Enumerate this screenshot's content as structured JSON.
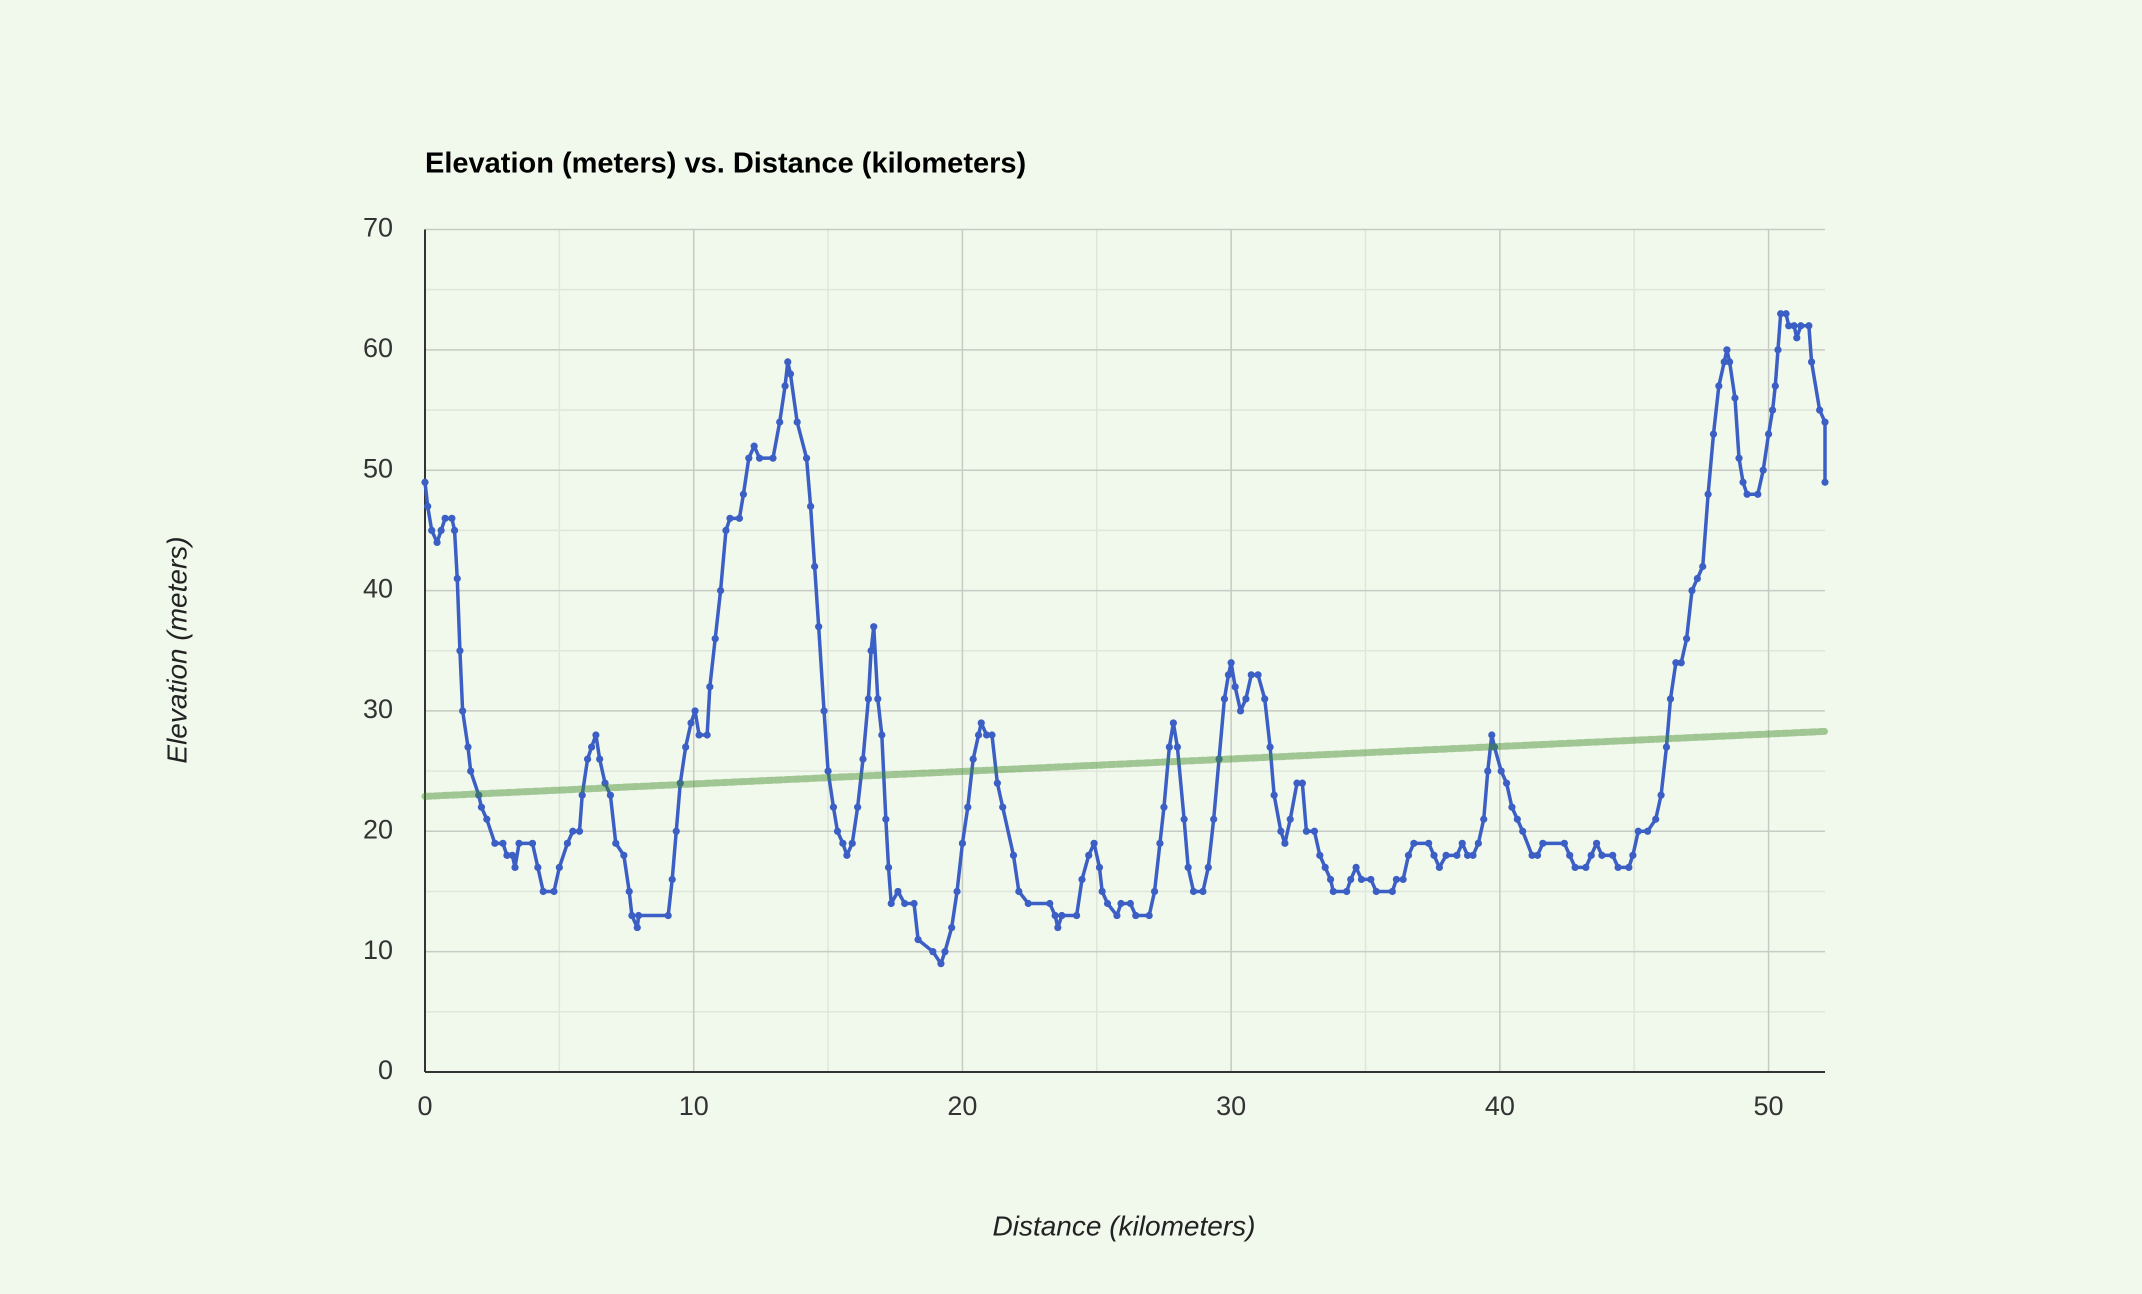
{
  "chart_data": {
    "type": "line",
    "title": "Elevation (meters) vs. Distance (kilometers)",
    "x_label": "Distance (kilometers)",
    "y_label": "Elevation (meters)",
    "xlim": [
      0,
      52.1
    ],
    "xticks": [
      0,
      10,
      20,
      30,
      40,
      50
    ],
    "ylim": [
      0,
      70
    ],
    "yticks": [
      0,
      10,
      20,
      30,
      40,
      50,
      60,
      70
    ],
    "grid": true,
    "series": [
      {
        "color": "#3b5fc4",
        "markers": true,
        "x": [
          0,
          0.1,
          0.25,
          0.45,
          0.6,
          0.75,
          1.0,
          1.1,
          1.2,
          1.3,
          1.4,
          1.6,
          1.7,
          2.0,
          2.1,
          2.3,
          2.6,
          2.9,
          3.05,
          3.25,
          3.35,
          3.5,
          4.0,
          4.2,
          4.4,
          4.8,
          5.0,
          5.3,
          5.5,
          5.75,
          5.85,
          6.05,
          6.2,
          6.36,
          6.5,
          6.7,
          6.9,
          7.1,
          7.4,
          7.6,
          7.7,
          7.9,
          7.95,
          9.05,
          9.2,
          9.35,
          9.5,
          9.7,
          9.9,
          10.05,
          10.2,
          10.5,
          10.6,
          10.8,
          11.0,
          11.2,
          11.35,
          11.7,
          11.85,
          12.05,
          12.25,
          12.45,
          12.95,
          13.2,
          13.4,
          13.5,
          13.6,
          13.85,
          14.2,
          14.35,
          14.5,
          14.65,
          14.85,
          15.0,
          15.2,
          15.35,
          15.55,
          15.7,
          15.9,
          16.1,
          16.3,
          16.5,
          16.6,
          16.7,
          16.85,
          17.0,
          17.15,
          17.25,
          17.35,
          17.6,
          17.85,
          18.2,
          18.35,
          18.9,
          19.2,
          19.35,
          19.6,
          19.8,
          20.0,
          20.2,
          20.4,
          20.6,
          20.7,
          20.9,
          21.1,
          21.3,
          21.5,
          21.9,
          22.1,
          22.45,
          23.25,
          23.45,
          23.55,
          23.7,
          24.25,
          24.45,
          24.7,
          24.9,
          25.1,
          25.2,
          25.4,
          25.75,
          25.9,
          26.25,
          26.45,
          26.95,
          27.15,
          27.35,
          27.5,
          27.7,
          27.85,
          28.0,
          28.25,
          28.4,
          28.6,
          28.95,
          29.15,
          29.35,
          29.55,
          29.75,
          29.9,
          30.0,
          30.15,
          30.35,
          30.55,
          30.75,
          31.0,
          31.25,
          31.45,
          31.6,
          31.85,
          32.0,
          32.2,
          32.45,
          32.65,
          32.8,
          33.1,
          33.3,
          33.5,
          33.7,
          33.8,
          34.3,
          34.45,
          34.65,
          34.85,
          35.2,
          35.4,
          36.0,
          36.15,
          36.4,
          36.6,
          36.8,
          37.35,
          37.55,
          37.75,
          38.0,
          38.4,
          38.6,
          38.8,
          39.0,
          39.2,
          39.4,
          39.55,
          39.7,
          39.8,
          40.05,
          40.25,
          40.45,
          40.65,
          40.85,
          41.2,
          41.4,
          41.6,
          42.4,
          42.6,
          42.8,
          43.2,
          43.4,
          43.6,
          43.8,
          44.2,
          44.4,
          44.8,
          44.95,
          45.15,
          45.5,
          45.8,
          46.0,
          46.2,
          46.35,
          46.55,
          46.75,
          46.95,
          47.15,
          47.35,
          47.55,
          47.75,
          47.95,
          48.15,
          48.35,
          48.45,
          48.55,
          48.75,
          48.9,
          49.05,
          49.2,
          49.6,
          49.8,
          50.0,
          50.15,
          50.25,
          50.35,
          50.45,
          50.65,
          50.75,
          50.95,
          51.05,
          51.2,
          51.5,
          51.6,
          51.9,
          52.1,
          52.1
        ],
        "values": [
          49,
          47,
          45,
          44,
          45,
          46,
          46,
          45,
          41,
          35,
          30,
          27,
          25,
          23,
          22,
          21,
          19,
          19,
          18,
          18,
          17,
          19,
          19,
          17,
          15,
          15,
          17,
          19,
          20,
          20,
          23,
          26,
          27,
          28,
          26,
          24,
          23,
          19,
          18,
          15,
          13,
          12,
          13,
          13,
          16,
          20,
          24,
          27,
          29,
          30,
          28,
          28,
          32,
          36,
          40,
          45,
          46,
          46,
          48,
          51,
          52,
          51,
          51,
          54,
          57,
          59,
          58,
          54,
          51,
          47,
          42,
          37,
          30,
          25,
          22,
          20,
          19,
          18,
          19,
          22,
          26,
          31,
          35,
          37,
          31,
          28,
          21,
          17,
          14,
          15,
          14,
          14,
          11,
          10,
          9,
          10,
          12,
          15,
          19,
          22,
          26,
          28,
          29,
          28,
          28,
          24,
          22,
          18,
          15,
          14,
          14,
          13,
          12,
          13,
          13,
          16,
          18,
          19,
          17,
          15,
          14,
          13,
          14,
          14,
          13,
          13,
          15,
          19,
          22,
          27,
          29,
          27,
          21,
          17,
          15,
          15,
          17,
          21,
          26,
          31,
          33,
          34,
          32,
          30,
          31,
          33,
          33,
          31,
          27,
          23,
          20,
          19,
          21,
          24,
          24,
          20,
          20,
          18,
          17,
          16,
          15,
          15,
          16,
          17,
          16,
          16,
          15,
          15,
          16,
          16,
          18,
          19,
          19,
          18,
          17,
          18,
          18,
          19,
          18,
          18,
          19,
          21,
          25,
          28,
          27,
          25,
          24,
          22,
          21,
          20,
          18,
          18,
          19,
          19,
          18,
          17,
          17,
          18,
          19,
          18,
          18,
          17,
          17,
          18,
          20,
          20,
          21,
          23,
          27,
          31,
          34,
          34,
          36,
          40,
          41,
          42,
          48,
          53,
          57,
          59,
          60,
          59,
          56,
          51,
          49,
          48,
          48,
          50,
          53,
          55,
          57,
          60,
          63,
          63,
          62,
          62,
          61,
          62,
          62,
          59,
          55,
          54,
          49
        ]
      },
      {
        "color": "#3d8c27",
        "trendline": true,
        "x": [
          0,
          52.1
        ],
        "values": [
          22.9,
          28.3
        ]
      }
    ]
  }
}
